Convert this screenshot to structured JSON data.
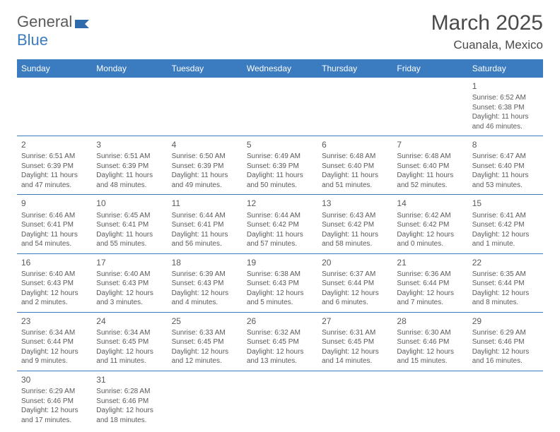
{
  "logo": {
    "text1": "General",
    "text2": "Blue"
  },
  "title": "March 2025",
  "location": "Cuanala, Mexico",
  "weekdays": [
    "Sunday",
    "Monday",
    "Tuesday",
    "Wednesday",
    "Thursday",
    "Friday",
    "Saturday"
  ],
  "colors": {
    "header_bg": "#3b7bbf",
    "header_text": "#ffffff",
    "cell_border": "#3b7bbf",
    "text": "#5a5a5a"
  },
  "rows": [
    [
      null,
      null,
      null,
      null,
      null,
      null,
      {
        "d": "1",
        "sr": "6:52 AM",
        "ss": "6:38 PM",
        "dl": "11 hours and 46 minutes."
      }
    ],
    [
      {
        "d": "2",
        "sr": "6:51 AM",
        "ss": "6:39 PM",
        "dl": "11 hours and 47 minutes."
      },
      {
        "d": "3",
        "sr": "6:51 AM",
        "ss": "6:39 PM",
        "dl": "11 hours and 48 minutes."
      },
      {
        "d": "4",
        "sr": "6:50 AM",
        "ss": "6:39 PM",
        "dl": "11 hours and 49 minutes."
      },
      {
        "d": "5",
        "sr": "6:49 AM",
        "ss": "6:39 PM",
        "dl": "11 hours and 50 minutes."
      },
      {
        "d": "6",
        "sr": "6:48 AM",
        "ss": "6:40 PM",
        "dl": "11 hours and 51 minutes."
      },
      {
        "d": "7",
        "sr": "6:48 AM",
        "ss": "6:40 PM",
        "dl": "11 hours and 52 minutes."
      },
      {
        "d": "8",
        "sr": "6:47 AM",
        "ss": "6:40 PM",
        "dl": "11 hours and 53 minutes."
      }
    ],
    [
      {
        "d": "9",
        "sr": "6:46 AM",
        "ss": "6:41 PM",
        "dl": "11 hours and 54 minutes."
      },
      {
        "d": "10",
        "sr": "6:45 AM",
        "ss": "6:41 PM",
        "dl": "11 hours and 55 minutes."
      },
      {
        "d": "11",
        "sr": "6:44 AM",
        "ss": "6:41 PM",
        "dl": "11 hours and 56 minutes."
      },
      {
        "d": "12",
        "sr": "6:44 AM",
        "ss": "6:42 PM",
        "dl": "11 hours and 57 minutes."
      },
      {
        "d": "13",
        "sr": "6:43 AM",
        "ss": "6:42 PM",
        "dl": "11 hours and 58 minutes."
      },
      {
        "d": "14",
        "sr": "6:42 AM",
        "ss": "6:42 PM",
        "dl": "12 hours and 0 minutes."
      },
      {
        "d": "15",
        "sr": "6:41 AM",
        "ss": "6:42 PM",
        "dl": "12 hours and 1 minute."
      }
    ],
    [
      {
        "d": "16",
        "sr": "6:40 AM",
        "ss": "6:43 PM",
        "dl": "12 hours and 2 minutes."
      },
      {
        "d": "17",
        "sr": "6:40 AM",
        "ss": "6:43 PM",
        "dl": "12 hours and 3 minutes."
      },
      {
        "d": "18",
        "sr": "6:39 AM",
        "ss": "6:43 PM",
        "dl": "12 hours and 4 minutes."
      },
      {
        "d": "19",
        "sr": "6:38 AM",
        "ss": "6:43 PM",
        "dl": "12 hours and 5 minutes."
      },
      {
        "d": "20",
        "sr": "6:37 AM",
        "ss": "6:44 PM",
        "dl": "12 hours and 6 minutes."
      },
      {
        "d": "21",
        "sr": "6:36 AM",
        "ss": "6:44 PM",
        "dl": "12 hours and 7 minutes."
      },
      {
        "d": "22",
        "sr": "6:35 AM",
        "ss": "6:44 PM",
        "dl": "12 hours and 8 minutes."
      }
    ],
    [
      {
        "d": "23",
        "sr": "6:34 AM",
        "ss": "6:44 PM",
        "dl": "12 hours and 9 minutes."
      },
      {
        "d": "24",
        "sr": "6:34 AM",
        "ss": "6:45 PM",
        "dl": "12 hours and 11 minutes."
      },
      {
        "d": "25",
        "sr": "6:33 AM",
        "ss": "6:45 PM",
        "dl": "12 hours and 12 minutes."
      },
      {
        "d": "26",
        "sr": "6:32 AM",
        "ss": "6:45 PM",
        "dl": "12 hours and 13 minutes."
      },
      {
        "d": "27",
        "sr": "6:31 AM",
        "ss": "6:45 PM",
        "dl": "12 hours and 14 minutes."
      },
      {
        "d": "28",
        "sr": "6:30 AM",
        "ss": "6:46 PM",
        "dl": "12 hours and 15 minutes."
      },
      {
        "d": "29",
        "sr": "6:29 AM",
        "ss": "6:46 PM",
        "dl": "12 hours and 16 minutes."
      }
    ],
    [
      {
        "d": "30",
        "sr": "6:29 AM",
        "ss": "6:46 PM",
        "dl": "12 hours and 17 minutes."
      },
      {
        "d": "31",
        "sr": "6:28 AM",
        "ss": "6:46 PM",
        "dl": "12 hours and 18 minutes."
      },
      null,
      null,
      null,
      null,
      null
    ]
  ],
  "labels": {
    "sunrise": "Sunrise: ",
    "sunset": "Sunset: ",
    "daylight": "Daylight: "
  }
}
